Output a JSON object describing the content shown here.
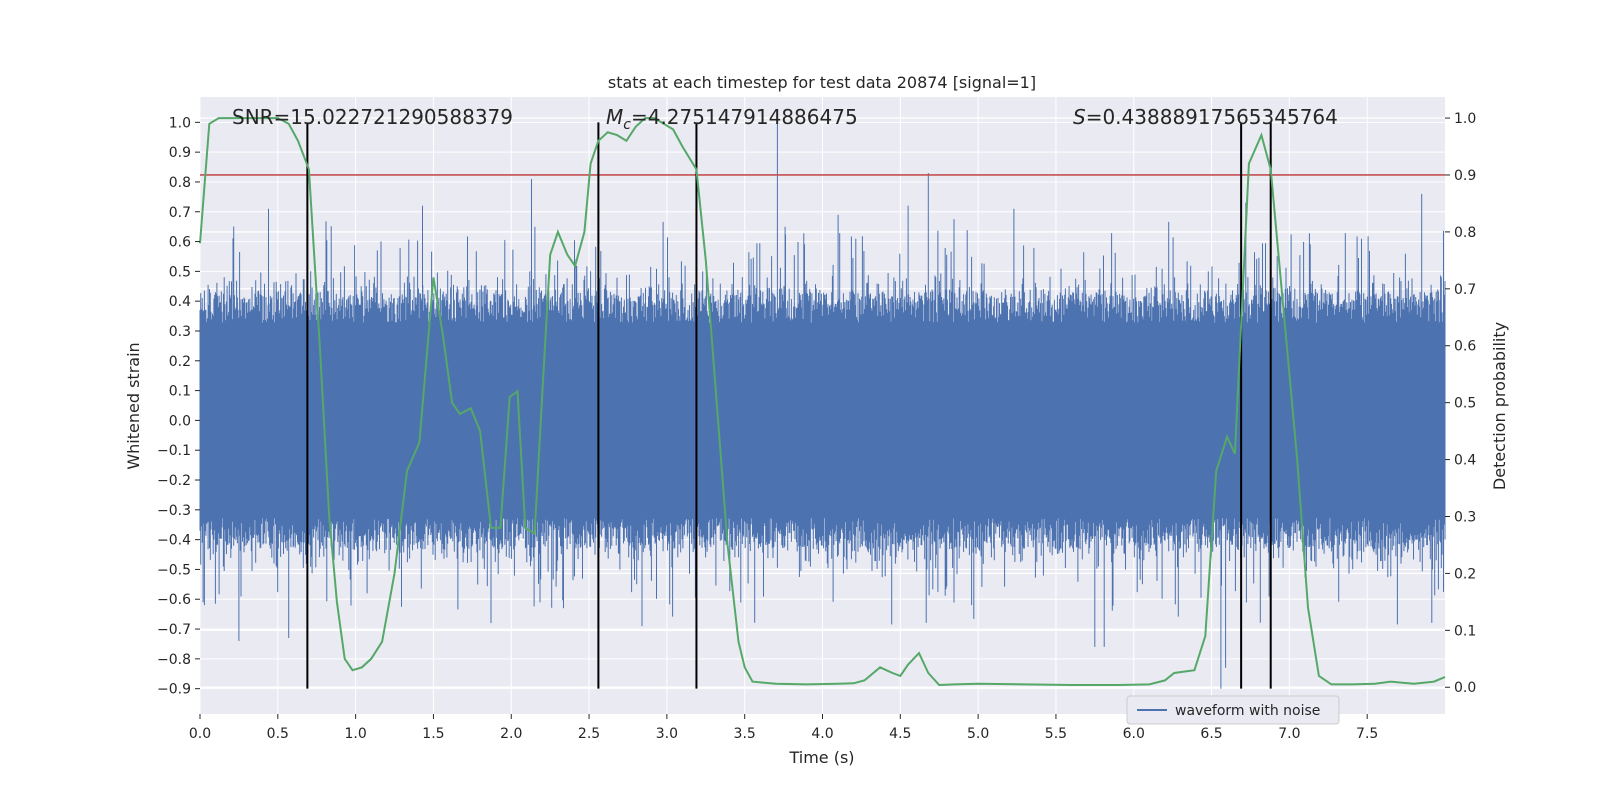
{
  "chart_data": {
    "type": "line",
    "title": "stats at each timestep for test data 20874 [signal=1]",
    "xlabel": "Time (s)",
    "ylabel_left": "Whitened strain",
    "ylabel_right": "Detection probability",
    "xlim": [
      0.0,
      8.0
    ],
    "ylim_left": [
      -0.985,
      1.085
    ],
    "ylim_right": [
      -0.047,
      1.037
    ],
    "x_ticks": [
      0.0,
      0.5,
      1.0,
      1.5,
      2.0,
      2.5,
      3.0,
      3.5,
      4.0,
      4.5,
      5.0,
      5.5,
      6.0,
      6.5,
      7.0,
      7.5
    ],
    "x_tick_labels": [
      "0.0",
      "0.5",
      "1.0",
      "1.5",
      "2.0",
      "2.5",
      "3.0",
      "3.5",
      "4.0",
      "4.5",
      "5.0",
      "5.5",
      "6.0",
      "6.5",
      "7.0",
      "7.5"
    ],
    "y_left_ticks": [
      1.0,
      0.9,
      0.8,
      0.7,
      0.6,
      0.5,
      0.4,
      0.3,
      0.2,
      0.1,
      0.0,
      -0.1,
      -0.2,
      -0.3,
      -0.4,
      -0.5,
      -0.6,
      -0.7,
      -0.8,
      -0.9
    ],
    "y_left_tick_labels": [
      "1.0",
      "0.9",
      "0.8",
      "0.7",
      "0.6",
      "0.5",
      "0.4",
      "0.3",
      "0.2",
      "0.1",
      "0.0",
      "−0.1",
      "−0.2",
      "−0.3",
      "−0.4",
      "−0.5",
      "−0.6",
      "−0.7",
      "−0.8",
      "−0.9"
    ],
    "y_right_ticks": [
      1.0,
      0.9,
      0.8,
      0.7,
      0.6,
      0.5,
      0.4,
      0.3,
      0.2,
      0.1,
      0.0
    ],
    "y_right_tick_labels": [
      "1.0",
      "0.9",
      "0.8",
      "0.7",
      "0.6",
      "0.5",
      "0.4",
      "0.3",
      "0.2",
      "0.1",
      "0.0"
    ],
    "grid": true,
    "annotations": {
      "snr": "SNR=15.022721290588379",
      "mc_symbol": "M",
      "mc_sub": "c",
      "mc_value": "=4.275147914886475",
      "s_symbol": "S",
      "s_value": "=0.43888917565345764"
    },
    "threshold_probability": 0.9,
    "vertical_markers": [
      0.69,
      2.56,
      3.19,
      6.69,
      6.88
    ],
    "vertical_marker_range_left": [
      -0.9,
      1.0
    ],
    "waveform": {
      "name": "waveform with noise",
      "color": "#4c72b0",
      "core_amplitude": 0.42,
      "spikes": [
        {
          "x": 3.71,
          "y": 1.0
        },
        {
          "x": 2.13,
          "y": 0.81
        },
        {
          "x": 4.68,
          "y": 0.83
        },
        {
          "x": 0.44,
          "y": 0.71
        },
        {
          "x": 1.43,
          "y": 0.72
        },
        {
          "x": 4.55,
          "y": 0.72
        },
        {
          "x": 5.23,
          "y": 0.71
        },
        {
          "x": 7.85,
          "y": 0.76
        },
        {
          "x": 6.72,
          "y": 0.73
        },
        {
          "x": 0.25,
          "y": -0.74
        },
        {
          "x": 0.57,
          "y": -0.73
        },
        {
          "x": 1.87,
          "y": -0.68
        },
        {
          "x": 2.84,
          "y": -0.69
        },
        {
          "x": 5.75,
          "y": -0.76
        },
        {
          "x": 5.81,
          "y": -0.76
        },
        {
          "x": 6.56,
          "y": -0.9
        },
        {
          "x": 6.59,
          "y": -0.83
        },
        {
          "x": 0.02,
          "y": -0.61
        },
        {
          "x": 3.76,
          "y": 0.65
        },
        {
          "x": 4.1,
          "y": 0.69
        }
      ]
    },
    "probability": {
      "name": "Detection probability",
      "color": "#55a868",
      "x": [
        0.0,
        0.06,
        0.12,
        0.2,
        0.3,
        0.4,
        0.5,
        0.57,
        0.63,
        0.7,
        0.77,
        0.83,
        0.88,
        0.93,
        0.98,
        1.04,
        1.1,
        1.17,
        1.25,
        1.33,
        1.41,
        1.5,
        1.56,
        1.62,
        1.67,
        1.74,
        1.8,
        1.87,
        1.93,
        1.99,
        2.04,
        2.09,
        2.15,
        2.2,
        2.25,
        2.3,
        2.36,
        2.41,
        2.47,
        2.51,
        2.56,
        2.62,
        2.68,
        2.74,
        2.8,
        2.86,
        2.92,
        2.98,
        3.04,
        3.1,
        3.19,
        3.25,
        3.32,
        3.39,
        3.46,
        3.5,
        3.55,
        3.7,
        3.9,
        4.1,
        4.2,
        4.27,
        4.37,
        4.45,
        4.5,
        4.55,
        4.62,
        4.68,
        4.75,
        4.85,
        5.0,
        5.3,
        5.6,
        5.9,
        6.1,
        6.2,
        6.26,
        6.39,
        6.46,
        6.53,
        6.6,
        6.65,
        6.74,
        6.82,
        6.88,
        6.95,
        7.05,
        7.12,
        7.19,
        7.27,
        7.4,
        7.55,
        7.65,
        7.8,
        7.93,
        8.0
      ],
      "y": [
        0.78,
        0.99,
        1.0,
        1.0,
        1.0,
        1.0,
        1.0,
        0.99,
        0.96,
        0.91,
        0.6,
        0.3,
        0.15,
        0.05,
        0.03,
        0.035,
        0.05,
        0.08,
        0.2,
        0.38,
        0.43,
        0.72,
        0.62,
        0.5,
        0.48,
        0.49,
        0.45,
        0.28,
        0.28,
        0.51,
        0.52,
        0.28,
        0.27,
        0.52,
        0.76,
        0.8,
        0.76,
        0.74,
        0.8,
        0.92,
        0.96,
        0.975,
        0.97,
        0.96,
        0.985,
        1.0,
        1.0,
        0.99,
        0.98,
        0.95,
        0.91,
        0.75,
        0.5,
        0.25,
        0.08,
        0.035,
        0.01,
        0.006,
        0.005,
        0.006,
        0.007,
        0.012,
        0.035,
        0.025,
        0.02,
        0.04,
        0.06,
        0.025,
        0.004,
        0.005,
        0.006,
        0.005,
        0.004,
        0.004,
        0.005,
        0.012,
        0.025,
        0.03,
        0.09,
        0.38,
        0.44,
        0.41,
        0.92,
        0.97,
        0.91,
        0.7,
        0.4,
        0.14,
        0.02,
        0.005,
        0.005,
        0.006,
        0.01,
        0.006,
        0.01,
        0.018
      ]
    }
  },
  "legend": {
    "position": "lower-right",
    "label": "waveform with noise"
  },
  "colors": {
    "plot_bg": "#eaeaf2",
    "grid": "#ffffff",
    "threshold": "#c44e52",
    "marker": "#000000"
  }
}
